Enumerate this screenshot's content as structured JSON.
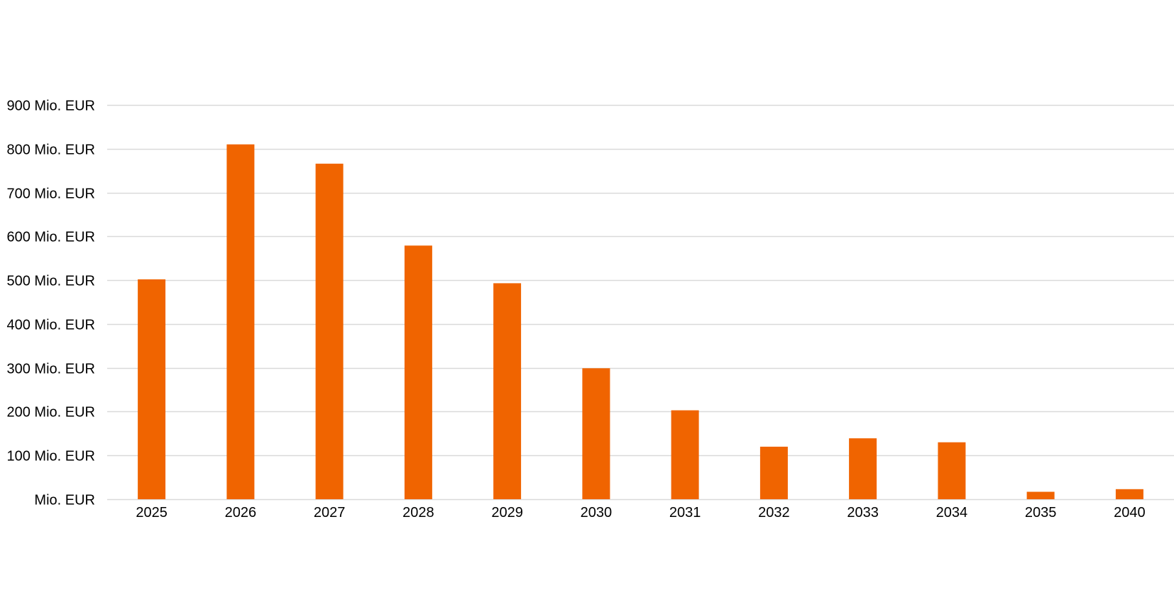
{
  "chart_data": {
    "type": "bar",
    "title": "",
    "xlabel": "",
    "ylabel": "",
    "categories": [
      "2025",
      "2026",
      "2027",
      "2028",
      "2029",
      "2030",
      "2031",
      "2032",
      "2033",
      "2034",
      "2035",
      "2040"
    ],
    "values": [
      502,
      810,
      766,
      579,
      493,
      299,
      203,
      120,
      139,
      130,
      17,
      23
    ],
    "ylim": [
      0,
      900
    ],
    "y_ticks": [
      0,
      100,
      200,
      300,
      400,
      500,
      600,
      700,
      800,
      900
    ],
    "y_tick_labels": [
      "Mio. EUR",
      "100 Mio. EUR",
      "200 Mio. EUR",
      "300 Mio. EUR",
      "400 Mio. EUR",
      "500 Mio. EUR",
      "600 Mio. EUR",
      "700 Mio. EUR",
      "800 Mio. EUR",
      "900 Mio. EUR"
    ],
    "grid": true,
    "legend": "none",
    "bar_color": "#f06400",
    "gridline_color": "#d9d9d9"
  }
}
